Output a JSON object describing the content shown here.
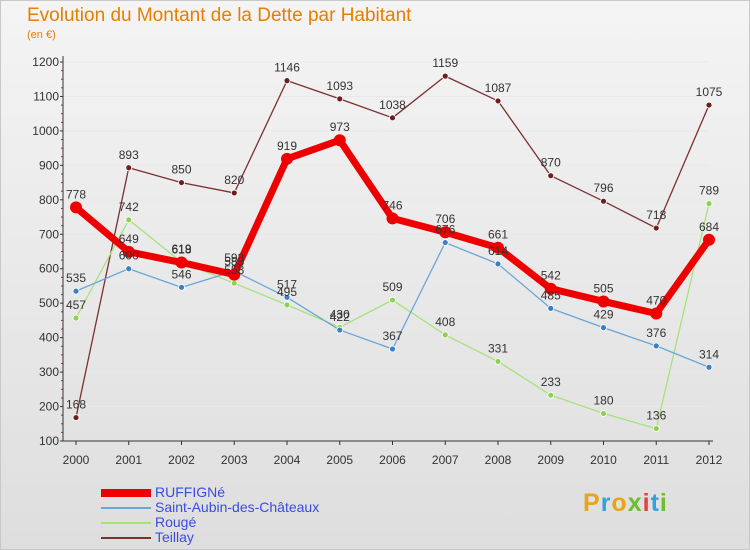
{
  "header": {
    "title": "Evolution du Montant de la Dette par Habitant",
    "unit": "(en €)"
  },
  "logo": {
    "letters": [
      "P",
      "r",
      "o",
      "x",
      "i",
      "t",
      "i"
    ]
  },
  "colors": {
    "title": "#e67e00",
    "legend_text": "#3a4cdf",
    "axis": "#333333",
    "grid": "#e8e8e8",
    "logo": [
      "#e8a317",
      "#2fa4dc",
      "#e8a317",
      "#6bbf2a",
      "#e83e3e",
      "#2fa4dc",
      "#6bbf2a"
    ]
  },
  "chart_data": {
    "type": "line",
    "title": "Evolution du Montant de la Dette par Habitant",
    "xlabel": "",
    "ylabel": "",
    "categories": [
      "2000",
      "2001",
      "2002",
      "2003",
      "2004",
      "2005",
      "2006",
      "2007",
      "2008",
      "2009",
      "2010",
      "2011",
      "2012"
    ],
    "ylim": [
      100,
      1200
    ],
    "yticks": [
      100,
      200,
      300,
      400,
      500,
      600,
      700,
      800,
      900,
      1000,
      1100,
      1200
    ],
    "grid": true,
    "legend_position": "bottom-left",
    "series": [
      {
        "name": "RUFFIGNé",
        "color": "#ee0000",
        "point_color": "#ee0000",
        "width": 7,
        "radius": 6,
        "values": [
          778,
          649,
          618,
          583,
          919,
          973,
          746,
          706,
          661,
          542,
          505,
          470,
          684
        ],
        "labels": [
          "778",
          "649",
          "618",
          "583",
          "919",
          "973",
          "746",
          "706",
          "661",
          "542",
          "505",
          "470",
          "684"
        ]
      },
      {
        "name": "Saint-Aubin-des-Châteaux",
        "color": "#6aa6d8",
        "point_color": "#3b7fc4",
        "width": 1.3,
        "radius": 3,
        "values": [
          535,
          600,
          546,
          593,
          517,
          422,
          367,
          676,
          614,
          485,
          429,
          376,
          314
        ],
        "labels": [
          "535",
          "600",
          "546",
          "593",
          "517",
          "422",
          "367",
          "676",
          "614",
          "485",
          "429",
          "376",
          "314"
        ]
      },
      {
        "name": "Rougé",
        "color": "#a6e27a",
        "point_color": "#8ed14f",
        "width": 1.3,
        "radius": 3,
        "values": [
          457,
          742,
          619,
          558,
          495,
          430,
          509,
          408,
          331,
          233,
          180,
          136,
          789
        ],
        "labels": [
          "457",
          "742",
          "619",
          "558",
          "495",
          "430",
          "509",
          "408",
          "331",
          "233",
          "180",
          "136",
          "789"
        ]
      },
      {
        "name": "Teillay",
        "color": "#7b3030",
        "point_color": "#6e1e1e",
        "width": 1.3,
        "radius": 3,
        "values": [
          168,
          893,
          850,
          820,
          1146,
          1093,
          1038,
          1159,
          1087,
          870,
          796,
          718,
          1075
        ],
        "labels": [
          "168",
          "893",
          "850",
          "820",
          "1146",
          "1093",
          "1038",
          "1159",
          "1087",
          "870",
          "796",
          "718",
          "1075"
        ]
      }
    ]
  }
}
